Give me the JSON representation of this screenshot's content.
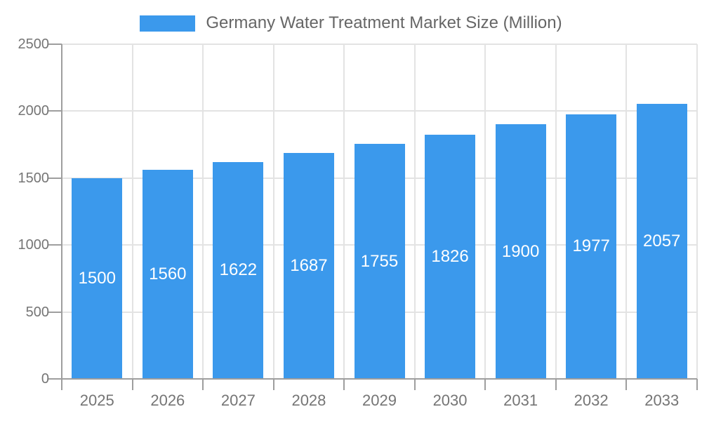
{
  "chart_data": {
    "type": "bar",
    "title": "Germany Water Treatment Market Size (Million)",
    "categories": [
      "2025",
      "2026",
      "2027",
      "2028",
      "2029",
      "2030",
      "2031",
      "2032",
      "2033"
    ],
    "values": [
      1500,
      1560,
      1622,
      1687,
      1755,
      1826,
      1900,
      1977,
      2057
    ],
    "xlabel": "",
    "ylabel": "",
    "ylim": [
      0,
      2500
    ],
    "y_ticks": [
      0,
      500,
      1000,
      1500,
      2000,
      2500
    ],
    "grid": true,
    "legend_position": "top-center",
    "bar_labels_inside": true
  },
  "colors": {
    "bar": "#3b99ec",
    "axis_line": "#9e9e9e",
    "gridline": "#e3e3e3",
    "axis_label_text": "#757575",
    "legend_text": "#666666",
    "bar_label_text": "#ffffff",
    "background": "#ffffff"
  }
}
